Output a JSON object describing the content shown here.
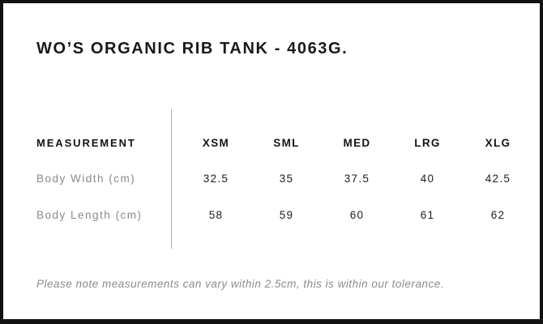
{
  "page": {
    "title": "WO’S ORGANIC RIB TANK - 4063G.",
    "note": "Please note measurements can vary within 2.5cm, this is within our tolerance."
  },
  "size_chart": {
    "measurement_header": "MEASUREMENT",
    "size_headers": [
      "XSM",
      "SML",
      "MED",
      "LRG",
      "XLG"
    ],
    "rows": [
      {
        "label": "Body Width (cm)",
        "values": [
          "32.5",
          "35",
          "37.5",
          "40",
          "42.5"
        ]
      },
      {
        "label": "Body Length (cm)",
        "values": [
          "58",
          "59",
          "60",
          "61",
          "62"
        ]
      }
    ]
  },
  "colors": {
    "background": "#ffffff",
    "border_black": "#121212",
    "text_black": "#191919",
    "value_black": "#1f1f1f",
    "label_gray": "#8a8a8a",
    "divider_gray": "#b0b0b0"
  }
}
